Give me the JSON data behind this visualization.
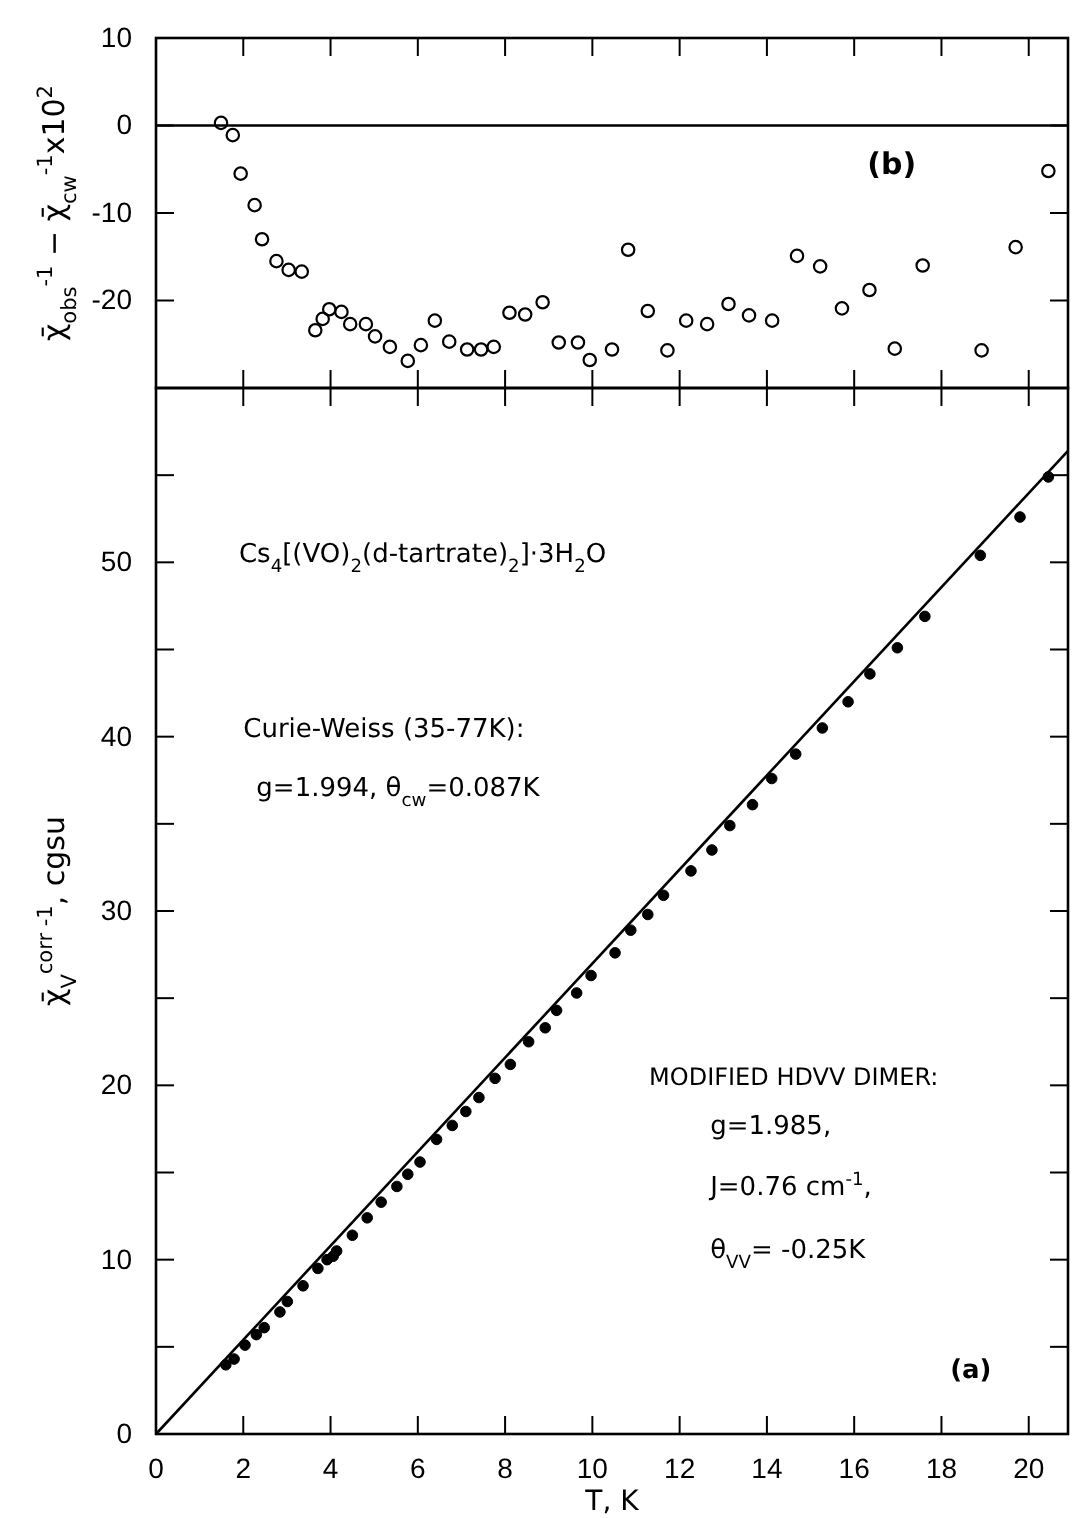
{
  "chart_data": [
    {
      "type": "scatter",
      "ylabel": "χ̄$_{obs}$$^{-1}$ − χ̄$_{cw}$$^{-1}$x10$^{2}$",
      "xlim": [
        0,
        20.9
      ],
      "ylim": [
        -30,
        10
      ],
      "xticks": [
        {
          "value": 2,
          "label": null
        },
        {
          "value": 4,
          "label": null
        },
        {
          "value": 6,
          "label": null
        },
        {
          "value": 8,
          "label": null
        },
        {
          "value": 10,
          "label": null
        },
        {
          "value": 12,
          "label": null
        },
        {
          "value": 14,
          "label": null
        },
        {
          "value": 16,
          "label": null
        },
        {
          "value": 18,
          "label": null
        },
        {
          "value": 20,
          "label": null
        }
      ],
      "yticks": [
        -20,
        -10,
        0,
        10
      ],
      "tick_labels": "y",
      "marker": "circle",
      "annotations": [
        "(b)"
      ],
      "ref_lines": [
        {
          "axis": "y",
          "value": 0,
          "color": "#000000"
        }
      ],
      "series": [
        {
          "color": "#000000",
          "x": [
            1.49,
            1.76,
            1.94,
            2.26,
            2.43,
            2.76,
            3.04,
            3.34,
            3.65,
            3.82,
            3.97,
            4.25,
            4.45,
            4.81,
            5.02,
            5.36,
            5.77,
            6.07,
            6.39,
            6.72,
            7.13,
            7.45,
            7.74,
            8.1,
            8.46,
            8.86,
            9.23,
            9.67,
            9.94,
            10.45,
            10.82,
            11.27,
            11.72,
            12.15,
            12.63,
            13.12,
            13.59,
            14.12,
            14.69,
            15.22,
            15.72,
            16.35,
            16.93,
            17.57,
            18.92,
            19.7,
            20.45
          ],
          "values": [
            0.3,
            -1.1,
            -5.5,
            -9.1,
            -13.0,
            -15.5,
            -16.5,
            -16.7,
            -23.4,
            -22.1,
            -21.0,
            -21.3,
            -22.7,
            -22.7,
            -24.1,
            -25.3,
            -26.9,
            -25.1,
            -22.3,
            -24.7,
            -25.6,
            -25.6,
            -25.3,
            -21.4,
            -21.6,
            -20.2,
            -24.8,
            -24.8,
            -26.8,
            -25.6,
            -14.2,
            -21.2,
            -25.7,
            -22.3,
            -22.7,
            -20.4,
            -21.7,
            -22.3,
            -14.9,
            -16.1,
            -20.9,
            -18.8,
            -25.5,
            -16.0,
            -25.7,
            -13.9,
            -5.2
          ]
        }
      ]
    },
    {
      "type": "scatter",
      "xlabel": "T, K",
      "ylabel": "χ̄$_{V}$$^{corr -1}$, cgsu",
      "xlim": [
        0,
        20.9
      ],
      "ylim": [
        0,
        60
      ],
      "xticks": [
        0,
        2,
        4,
        6,
        8,
        10,
        12,
        14,
        16,
        18,
        20
      ],
      "yticks": [
        0,
        {
          "value": 5,
          "label": null
        },
        10,
        {
          "value": 15,
          "label": null
        },
        20,
        {
          "value": 25,
          "label": null
        },
        30,
        {
          "value": 35,
          "label": null
        },
        40,
        {
          "value": 45,
          "label": null
        },
        50,
        {
          "value": 55,
          "label": null
        }
      ],
      "marker": "circle",
      "annotations": [
        "Cs$_{4}$[(VO)$_{2}$(d-tartrate)$_{2}$]·3H$_{2}$O",
        "Curie-Weiss (35-77K):",
        "g=1.994, θ$_{cw}$=0.087K",
        "MODIFIED HDVV DIMER:",
        "g=1.985,",
        "J=0.76 cm$^{-1}$,",
        "θ$_{VV}$= -0.25K",
        "(a)"
      ],
      "series": [
        {
          "color": "#000000",
          "x": [
            1.6,
            1.79,
            2.04,
            2.3,
            2.48,
            2.84,
            3.01,
            3.37,
            3.71,
            3.92,
            4.06,
            4.14,
            4.5,
            4.84,
            5.16,
            5.52,
            5.77,
            6.05,
            6.43,
            6.79,
            7.1,
            7.4,
            7.77,
            8.12,
            8.54,
            8.92,
            9.18,
            9.64,
            9.97,
            10.52,
            10.88,
            11.27,
            11.63,
            12.26,
            12.74,
            13.15,
            13.67,
            14.11,
            14.66,
            15.27,
            15.86,
            16.36,
            16.99,
            17.62,
            18.89,
            19.8,
            20.45
          ],
          "values": [
            3.97,
            4.3,
            5.1,
            5.7,
            6.1,
            7.0,
            7.6,
            8.5,
            9.5,
            10.0,
            10.2,
            10.5,
            11.4,
            12.4,
            13.3,
            14.2,
            14.9,
            15.6,
            16.9,
            17.7,
            18.5,
            19.3,
            20.4,
            21.2,
            22.5,
            23.3,
            24.3,
            25.3,
            26.3,
            27.6,
            28.9,
            29.8,
            30.9,
            32.3,
            33.5,
            34.9,
            36.1,
            37.6,
            39.0,
            40.5,
            42.0,
            43.6,
            45.1,
            46.9,
            50.4,
            52.6,
            54.9
          ]
        },
        {
          "type": "line",
          "color": "#000000",
          "marker": "none",
          "x": [
            0,
            20.9
          ],
          "values": [
            0,
            56.4
          ]
        }
      ]
    }
  ]
}
